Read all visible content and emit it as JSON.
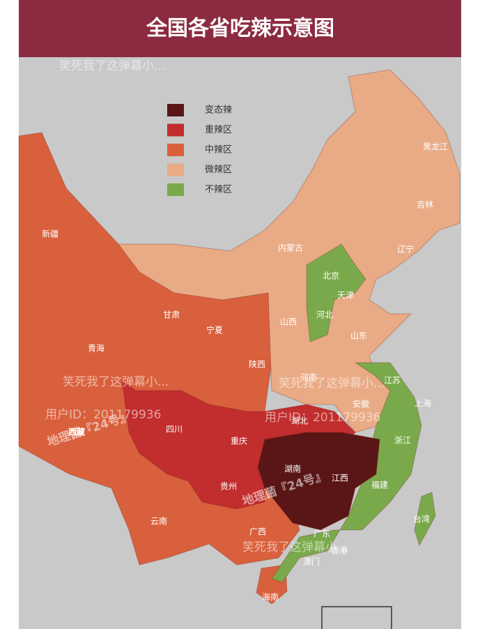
{
  "title": "全国各省吃辣示意图",
  "legend": {
    "items": [
      {
        "label": "变态辣",
        "color": "#5a1616"
      },
      {
        "label": "重辣区",
        "color": "#c22d2d"
      },
      {
        "label": "中辣区",
        "color": "#d9603c"
      },
      {
        "label": "微辣区",
        "color": "#e9ab86"
      },
      {
        "label": "不辣区",
        "color": "#7aa94b"
      }
    ]
  },
  "provinces": [
    "新疆",
    "西藏",
    "青海",
    "甘肃",
    "宁夏",
    "内蒙古",
    "陕西",
    "四川",
    "重庆",
    "贵州",
    "云南",
    "广西",
    "湖南",
    "湖北",
    "江西",
    "广东",
    "海南",
    "福建",
    "浙江",
    "上海",
    "江苏",
    "安徽",
    "河南",
    "山东",
    "山西",
    "河北",
    "北京",
    "天津",
    "辽宁",
    "吉林",
    "黑龙江",
    "台湾",
    "香港",
    "澳门"
  ],
  "watermarks": [
    "笑死我了这弹幕小...",
    "用户ID：201179936",
    "地理菌『24号』"
  ]
}
